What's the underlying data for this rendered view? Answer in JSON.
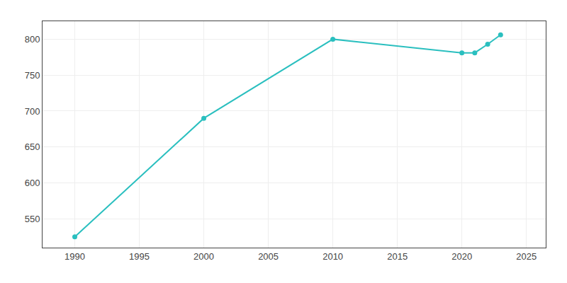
{
  "chart_data": {
    "type": "line",
    "x": [
      1990,
      2000,
      2010,
      2020,
      2021,
      2022,
      2023
    ],
    "values": [
      525,
      690,
      800,
      781,
      781,
      793,
      806
    ],
    "color": "#2ABFBF",
    "marker": "circle",
    "xlim": [
      1987.5,
      2026.5
    ],
    "ylim": [
      510,
      825
    ],
    "xticks": [
      1990,
      1995,
      2000,
      2005,
      2010,
      2015,
      2020,
      2025
    ],
    "yticks": [
      550,
      600,
      650,
      700,
      750,
      800
    ],
    "grid": true
  }
}
